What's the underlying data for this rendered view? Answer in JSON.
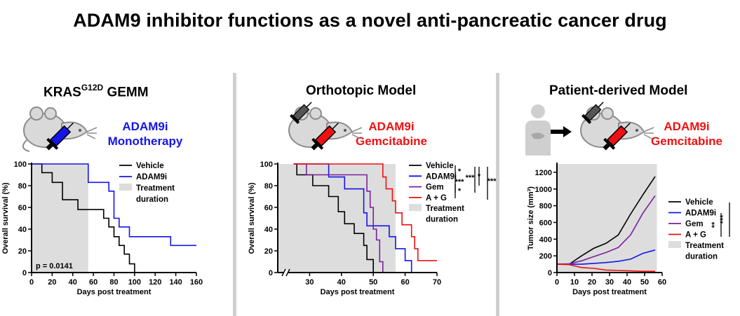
{
  "header": {
    "title": "ADAM9 inhibitor functions as a novel anti-pancreatic cancer drug"
  },
  "colors": {
    "black": "#000000",
    "blue": "#1515e8",
    "purple": "#7a1f9e",
    "red": "#ee1111",
    "shade": "#dddddd",
    "divider": "#cfcfcf"
  },
  "panels": [
    {
      "title_main": "KRAS",
      "title_sup": "G12D",
      "title_tail": " GEMM",
      "labels": [
        "ADAM9i",
        "Monotherapy"
      ]
    },
    {
      "title": "Orthotopic Model",
      "labels": [
        "ADAM9i",
        "Gemcitabine"
      ]
    },
    {
      "title": "Patient-derived Model",
      "labels": [
        "ADAM9i",
        "Gemcitabine"
      ]
    }
  ],
  "chart_data": [
    {
      "type": "line",
      "step": true,
      "xlabel": "Days post treatment",
      "ylabel": "Overall survival (%)",
      "xlim": [
        0,
        160
      ],
      "ylim": [
        0,
        100
      ],
      "xticks": [
        0,
        20,
        40,
        60,
        80,
        100,
        120,
        140,
        160
      ],
      "yticks": [
        0,
        20,
        40,
        60,
        80,
        100
      ],
      "shade": [
        0,
        55
      ],
      "annotation": "p = 0.0141",
      "legend": [
        "Vehicle",
        "ADAM9i",
        "Treatment",
        "duration"
      ],
      "series": [
        {
          "name": "Vehicle",
          "color": "black",
          "points": [
            [
              0,
              100
            ],
            [
              10,
              100
            ],
            [
              10,
              92
            ],
            [
              20,
              92
            ],
            [
              20,
              83
            ],
            [
              30,
              83
            ],
            [
              30,
              67
            ],
            [
              45,
              67
            ],
            [
              45,
              58
            ],
            [
              70,
              58
            ],
            [
              70,
              50
            ],
            [
              75,
              50
            ],
            [
              75,
              42
            ],
            [
              80,
              42
            ],
            [
              80,
              33
            ],
            [
              85,
              33
            ],
            [
              85,
              25
            ],
            [
              90,
              25
            ],
            [
              90,
              17
            ],
            [
              95,
              17
            ],
            [
              95,
              8
            ],
            [
              100,
              8
            ],
            [
              100,
              0
            ]
          ]
        },
        {
          "name": "ADAM9i",
          "color": "blue",
          "points": [
            [
              0,
              100
            ],
            [
              55,
              100
            ],
            [
              55,
              83
            ],
            [
              75,
              83
            ],
            [
              75,
              75
            ],
            [
              80,
              75
            ],
            [
              80,
              50
            ],
            [
              85,
              50
            ],
            [
              85,
              42
            ],
            [
              95,
              42
            ],
            [
              95,
              33
            ],
            [
              135,
              33
            ],
            [
              135,
              25
            ],
            [
              160,
              25
            ]
          ]
        }
      ]
    },
    {
      "type": "line",
      "step": true,
      "xlabel": "Days post treatment",
      "ylabel": "Overall survival (%)",
      "xlim": [
        20,
        70
      ],
      "ylim": [
        0,
        100
      ],
      "xticks": [
        30,
        40,
        50,
        60,
        70
      ],
      "yticks": [
        0,
        20,
        40,
        60,
        80,
        100
      ],
      "axis_break": true,
      "shade": [
        20,
        57
      ],
      "legend": [
        "Vehicle",
        "ADAM9i",
        "Gem",
        "A + G",
        "Treatment",
        "duration"
      ],
      "significance": [
        "*",
        "*",
        "***",
        "***",
        "*",
        "***"
      ],
      "series": [
        {
          "name": "Vehicle",
          "color": "black",
          "points": [
            [
              25,
              100
            ],
            [
              26,
              100
            ],
            [
              26,
              90
            ],
            [
              31,
              90
            ],
            [
              31,
              80
            ],
            [
              36,
              80
            ],
            [
              36,
              70
            ],
            [
              39,
              70
            ],
            [
              39,
              56
            ],
            [
              41,
              56
            ],
            [
              41,
              45
            ],
            [
              44,
              45
            ],
            [
              44,
              36
            ],
            [
              47,
              36
            ],
            [
              47,
              25
            ],
            [
              48,
              25
            ],
            [
              48,
              12
            ],
            [
              50,
              12
            ],
            [
              50,
              0
            ]
          ]
        },
        {
          "name": "ADAM9i",
          "color": "blue",
          "points": [
            [
              25,
              100
            ],
            [
              36,
              100
            ],
            [
              36,
              88
            ],
            [
              41,
              88
            ],
            [
              41,
              77
            ],
            [
              47,
              77
            ],
            [
              47,
              55
            ],
            [
              48,
              55
            ],
            [
              48,
              43
            ],
            [
              55,
              43
            ],
            [
              55,
              33
            ],
            [
              57,
              33
            ],
            [
              57,
              22
            ],
            [
              60,
              22
            ],
            [
              60,
              11
            ],
            [
              62,
              11
            ],
            [
              62,
              0
            ]
          ]
        },
        {
          "name": "Gem",
          "color": "purple",
          "points": [
            [
              25,
              100
            ],
            [
              29,
              100
            ],
            [
              29,
              90
            ],
            [
              48,
              90
            ],
            [
              48,
              75
            ],
            [
              49,
              75
            ],
            [
              49,
              60
            ],
            [
              50,
              60
            ],
            [
              50,
              40
            ],
            [
              51,
              40
            ],
            [
              51,
              30
            ],
            [
              52,
              30
            ],
            [
              52,
              10
            ],
            [
              53,
              10
            ],
            [
              53,
              0
            ]
          ]
        },
        {
          "name": "A + G",
          "color": "red",
          "points": [
            [
              25,
              100
            ],
            [
              53,
              100
            ],
            [
              53,
              88
            ],
            [
              54,
              88
            ],
            [
              54,
              77
            ],
            [
              56,
              77
            ],
            [
              56,
              66
            ],
            [
              57,
              66
            ],
            [
              57,
              55
            ],
            [
              59,
              55
            ],
            [
              59,
              44
            ],
            [
              62,
              44
            ],
            [
              62,
              33
            ],
            [
              63,
              33
            ],
            [
              63,
              22
            ],
            [
              64,
              22
            ],
            [
              64,
              11
            ],
            [
              70,
              11
            ]
          ]
        }
      ]
    },
    {
      "type": "line",
      "xlabel": "Days post treatment",
      "ylabel": "Tumor size (mm³)",
      "xlim": [
        0,
        60
      ],
      "ylim": [
        0,
        1300
      ],
      "xticks": [
        0,
        10,
        20,
        30,
        40,
        50,
        60
      ],
      "yticks": [
        0,
        200,
        400,
        600,
        800,
        1000,
        1200
      ],
      "shade": [
        0,
        57
      ],
      "legend": [
        "Vehicle",
        "ADAM9i",
        "Gem",
        "A + G",
        "Treatment",
        "duration"
      ],
      "significance": [
        "**",
        "***"
      ],
      "series": [
        {
          "name": "Vehicle",
          "color": "black",
          "points": [
            [
              0,
              100
            ],
            [
              7,
              100
            ],
            [
              14,
              200
            ],
            [
              21,
              290
            ],
            [
              28,
              350
            ],
            [
              35,
              450
            ],
            [
              42,
              700
            ],
            [
              49,
              930
            ],
            [
              56,
              1150
            ]
          ]
        },
        {
          "name": "ADAM9i",
          "color": "blue",
          "points": [
            [
              0,
              100
            ],
            [
              7,
              100
            ],
            [
              14,
              100
            ],
            [
              21,
              110
            ],
            [
              28,
              120
            ],
            [
              35,
              135
            ],
            [
              42,
              160
            ],
            [
              49,
              230
            ],
            [
              56,
              270
            ]
          ]
        },
        {
          "name": "Gem",
          "color": "purple",
          "points": [
            [
              0,
              100
            ],
            [
              7,
              105
            ],
            [
              14,
              140
            ],
            [
              21,
              190
            ],
            [
              28,
              240
            ],
            [
              35,
              300
            ],
            [
              42,
              450
            ],
            [
              49,
              710
            ],
            [
              56,
              920
            ]
          ]
        },
        {
          "name": "A + G",
          "color": "red",
          "points": [
            [
              0,
              100
            ],
            [
              7,
              95
            ],
            [
              14,
              60
            ],
            [
              21,
              50
            ],
            [
              28,
              30
            ],
            [
              35,
              25
            ],
            [
              42,
              20
            ],
            [
              49,
              15
            ],
            [
              56,
              15
            ]
          ]
        }
      ]
    }
  ]
}
